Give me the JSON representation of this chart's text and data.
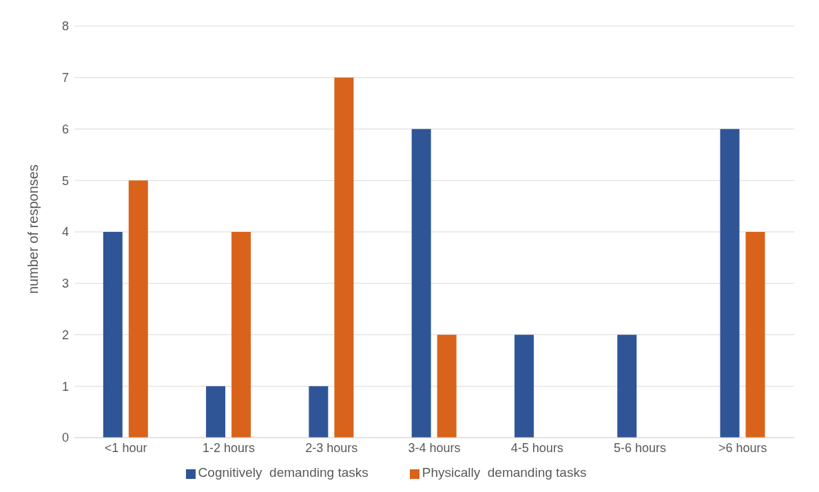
{
  "chart_data": {
    "type": "bar",
    "categories": [
      "<1 hour",
      "1-2 hours",
      "2-3 hours",
      "3-4 hours",
      "4-5 hours",
      "5-6 hours",
      ">6 hours"
    ],
    "ylabel": "number of responses",
    "series": [
      {
        "name": "Cognitively  demanding tasks",
        "color": "#2f5597",
        "values": [
          4,
          1,
          1,
          6,
          2,
          2,
          6
        ]
      },
      {
        "name": "Physically  demanding tasks",
        "color": "#d9631a",
        "values": [
          5,
          4,
          7,
          2,
          0,
          0,
          4
        ]
      }
    ],
    "ylim": [
      0,
      8
    ],
    "yticks": [
      0,
      1,
      2,
      3,
      4,
      5,
      6,
      7,
      8
    ],
    "grid": "y",
    "legend": "bottom"
  }
}
